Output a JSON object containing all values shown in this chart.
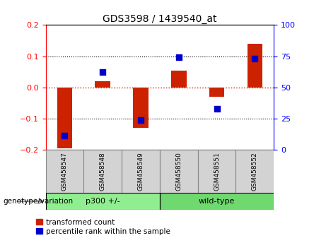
{
  "title": "GDS3598 / 1439540_at",
  "samples": [
    "GSM458547",
    "GSM458548",
    "GSM458549",
    "GSM458550",
    "GSM458551",
    "GSM458552"
  ],
  "red_bars": [
    -0.195,
    0.02,
    -0.13,
    0.055,
    -0.03,
    0.14
  ],
  "blue_dots_left": [
    -0.155,
    0.05,
    -0.105,
    0.098,
    -0.068,
    0.092
  ],
  "groups": [
    {
      "label": "p300 +/-",
      "start": 0,
      "end": 2,
      "color": "#90EE90"
    },
    {
      "label": "wild-type",
      "start": 3,
      "end": 5,
      "color": "#6FD96F"
    }
  ],
  "group_label": "genotype/variation",
  "ylim_left": [
    -0.2,
    0.2
  ],
  "ylim_right": [
    0,
    100
  ],
  "yticks_left": [
    -0.2,
    -0.1,
    0.0,
    0.1,
    0.2
  ],
  "yticks_right": [
    0,
    25,
    50,
    75,
    100
  ],
  "bar_color": "#CC2200",
  "dot_color": "#0000CC",
  "zero_line_color": "#CC2200",
  "legend_red_label": "transformed count",
  "legend_blue_label": "percentile rank within the sample",
  "bar_width": 0.4,
  "dot_size": 40,
  "sample_box_color": "#D3D3D3",
  "sample_box_edge": "#888888"
}
